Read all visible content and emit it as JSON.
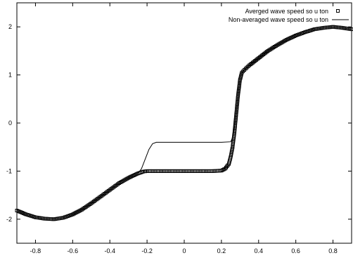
{
  "chart_data": {
    "type": "line",
    "title": "",
    "xlabel": "",
    "ylabel": "",
    "xlim": [
      -0.9,
      0.9
    ],
    "ylim": [
      -2.5,
      2.5
    ],
    "grid": false,
    "legend_position": "top-right",
    "x_ticks": [
      "-0.8",
      "-0.6",
      "-0.4",
      "-0.2",
      "0",
      "0.2",
      "0.4",
      "0.6",
      "0.8"
    ],
    "x_tick_values": [
      -0.8,
      -0.6,
      -0.4,
      -0.2,
      0,
      0.2,
      0.4,
      0.6,
      0.8
    ],
    "y_ticks": [
      "-2",
      "-1",
      "0",
      "1",
      "2"
    ],
    "y_tick_values": [
      -2,
      -1,
      0,
      1,
      2
    ],
    "series": [
      {
        "name": "Averged wave speed so u ton",
        "style": "markers",
        "color": "#000000",
        "points": [
          [
            -0.9,
            -1.82
          ],
          [
            -0.85,
            -1.9
          ],
          [
            -0.8,
            -1.96
          ],
          [
            -0.75,
            -1.99
          ],
          [
            -0.7,
            -2.0
          ],
          [
            -0.65,
            -1.97
          ],
          [
            -0.6,
            -1.9
          ],
          [
            -0.55,
            -1.8
          ],
          [
            -0.5,
            -1.67
          ],
          [
            -0.45,
            -1.53
          ],
          [
            -0.4,
            -1.39
          ],
          [
            -0.35,
            -1.25
          ],
          [
            -0.3,
            -1.14
          ],
          [
            -0.25,
            -1.05
          ],
          [
            -0.22,
            -1.01
          ],
          [
            -0.2,
            -1.0
          ],
          [
            -0.15,
            -1.0
          ],
          [
            -0.1,
            -1.0
          ],
          [
            -0.05,
            -1.0
          ],
          [
            0.0,
            -1.0
          ],
          [
            0.05,
            -1.0
          ],
          [
            0.1,
            -1.0
          ],
          [
            0.15,
            -1.0
          ],
          [
            0.2,
            -0.99
          ],
          [
            0.22,
            -0.95
          ],
          [
            0.24,
            -0.85
          ],
          [
            0.25,
            -0.7
          ],
          [
            0.26,
            -0.5
          ],
          [
            0.27,
            -0.2
          ],
          [
            0.28,
            0.2
          ],
          [
            0.29,
            0.6
          ],
          [
            0.3,
            0.9
          ],
          [
            0.31,
            1.05
          ],
          [
            0.33,
            1.13
          ],
          [
            0.35,
            1.2
          ],
          [
            0.4,
            1.35
          ],
          [
            0.45,
            1.5
          ],
          [
            0.5,
            1.62
          ],
          [
            0.55,
            1.73
          ],
          [
            0.6,
            1.82
          ],
          [
            0.65,
            1.89
          ],
          [
            0.7,
            1.95
          ],
          [
            0.75,
            1.98
          ],
          [
            0.8,
            2.0
          ],
          [
            0.85,
            1.98
          ],
          [
            0.9,
            1.95
          ]
        ]
      },
      {
        "name": "Non-averaged wave speed so u ton",
        "style": "line",
        "color": "#000000",
        "points": [
          [
            -0.9,
            -1.82
          ],
          [
            -0.85,
            -1.9
          ],
          [
            -0.8,
            -1.96
          ],
          [
            -0.75,
            -1.99
          ],
          [
            -0.7,
            -2.0
          ],
          [
            -0.65,
            -1.97
          ],
          [
            -0.6,
            -1.9
          ],
          [
            -0.55,
            -1.8
          ],
          [
            -0.5,
            -1.67
          ],
          [
            -0.45,
            -1.53
          ],
          [
            -0.4,
            -1.39
          ],
          [
            -0.35,
            -1.25
          ],
          [
            -0.3,
            -1.14
          ],
          [
            -0.25,
            -1.05
          ],
          [
            -0.23,
            -0.95
          ],
          [
            -0.21,
            -0.75
          ],
          [
            -0.19,
            -0.55
          ],
          [
            -0.17,
            -0.43
          ],
          [
            -0.15,
            -0.4
          ],
          [
            -0.1,
            -0.4
          ],
          [
            0.0,
            -0.4
          ],
          [
            0.1,
            -0.4
          ],
          [
            0.2,
            -0.4
          ],
          [
            0.25,
            -0.39
          ],
          [
            0.26,
            -0.3
          ],
          [
            0.27,
            -0.1
          ],
          [
            0.28,
            0.2
          ],
          [
            0.29,
            0.6
          ],
          [
            0.3,
            0.9
          ],
          [
            0.31,
            1.05
          ],
          [
            0.33,
            1.13
          ],
          [
            0.35,
            1.2
          ],
          [
            0.4,
            1.35
          ],
          [
            0.45,
            1.5
          ],
          [
            0.5,
            1.62
          ],
          [
            0.55,
            1.73
          ],
          [
            0.6,
            1.82
          ],
          [
            0.65,
            1.89
          ],
          [
            0.7,
            1.95
          ],
          [
            0.75,
            1.98
          ],
          [
            0.8,
            2.0
          ],
          [
            0.85,
            1.98
          ],
          [
            0.9,
            1.95
          ]
        ]
      }
    ]
  }
}
